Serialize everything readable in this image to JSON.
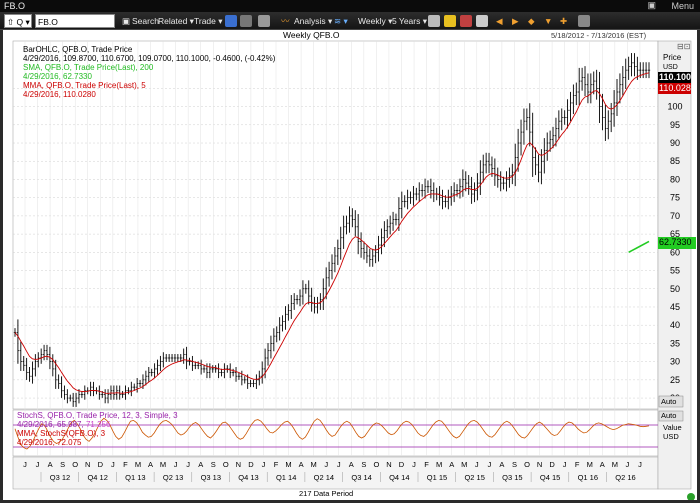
{
  "window": {
    "title": "FB.O",
    "menu_label": "Menu"
  },
  "toolbar": {
    "symbol_type": "Q",
    "symbol_value": "FB.O",
    "search_label": "Search",
    "related_label": "Related",
    "trade_label": "Trade",
    "analysis_label": "Analysis",
    "interval_label": "Weekly",
    "range_label": "5 Years"
  },
  "chart_header": {
    "title": "Weekly QFB.O",
    "date_range": "5/18/2012 - 7/13/2016 (EST)"
  },
  "legend": {
    "bar_line1": "BarOHLC, QFB.O, Trade Price",
    "bar_line2": "4/29/2016, 109.8700, 110.6700, 109.0700, 110.1000, -0.4600, (-0.42%)",
    "sma_line1": "SMA, QFB.O, Trade Price(Last), 200",
    "sma_line2": "4/29/2016, 62.7330",
    "mma_line1": "MMA, QFB.O, Trade Price(Last), 5",
    "mma_line2": "4/29/2016, 110.0280",
    "stoch_line1": "StochS, QFB.O, Trade Price, 12, 3, Simple, 3",
    "stoch_line2_a": "4/29/2016, 65.987,",
    "stoch_line2_b": "71.256",
    "stoch_mma_line1": "MMA, StochS(QFB.O), 3",
    "stoch_mma_line2": "4/29/2016, 72.075"
  },
  "price_axis": {
    "header": "Price",
    "currency": "USD",
    "last_price": "110.100",
    "mma_value": "110.028",
    "sma_value": "62.7330",
    "auto_label": "Auto"
  },
  "stoch_axis": {
    "auto_label": "Auto",
    "header": "Value",
    "currency": "USD"
  },
  "footer": {
    "data_period": "217 Data Period"
  },
  "colors": {
    "price_bars": "#000000",
    "mma": "#cc0000",
    "sma": "#22cc22",
    "stoch_k": "#cc5500",
    "stoch_band": "#9922aa"
  },
  "chart_data": [
    {
      "type": "line",
      "title": "Weekly QFB.O",
      "x_labels": [
        "J",
        "J",
        "A",
        "S",
        "O",
        "N",
        "D",
        "J",
        "F",
        "M",
        "A",
        "M",
        "J",
        "J",
        "A",
        "S",
        "O",
        "N",
        "D",
        "J",
        "F",
        "M",
        "A",
        "M",
        "J",
        "J",
        "A",
        "S",
        "O",
        "N",
        "D",
        "J",
        "F",
        "M",
        "A",
        "M",
        "J",
        "J",
        "A",
        "S",
        "O",
        "N",
        "D",
        "J",
        "F",
        "M",
        "A",
        "M",
        "J",
        "J"
      ],
      "quarter_labels": [
        "Q3 12",
        "Q4 12",
        "Q1 13",
        "Q2 13",
        "Q3 13",
        "Q4 13",
        "Q1 14",
        "Q2 14",
        "Q3 14",
        "Q4 14",
        "Q1 15",
        "Q2 15",
        "Q3 15",
        "Q4 15",
        "Q1 16",
        "Q2 16"
      ],
      "y_ticks": [
        20,
        25,
        30,
        35,
        40,
        45,
        50,
        55,
        60,
        65,
        70,
        75,
        80,
        85,
        90,
        95,
        100,
        105
      ],
      "ylim": [
        17,
        118
      ],
      "series": [
        {
          "name": "BarOHLC, QFB.O, Trade Price",
          "period_start": "5/18/2012",
          "period_end": "4/29/2016",
          "close": [
            38,
            33,
            30,
            29,
            27,
            26,
            28,
            30,
            31,
            32,
            33,
            32,
            30,
            28,
            25,
            24,
            22,
            21,
            20,
            20,
            19,
            20,
            21,
            21,
            22,
            22,
            23,
            22,
            22,
            21,
            21,
            20,
            21,
            22,
            21,
            22,
            21,
            21,
            22,
            22,
            23,
            23,
            24,
            24,
            25,
            26,
            27,
            27,
            28,
            29,
            30,
            31,
            31,
            31,
            31,
            31,
            31,
            31,
            32,
            30,
            30,
            29,
            29,
            29,
            28,
            28,
            27,
            28,
            28,
            28,
            27,
            27,
            28,
            28,
            27,
            27,
            26,
            26,
            25,
            25,
            24,
            24,
            24,
            25,
            26,
            28,
            31,
            33,
            35,
            37,
            38,
            40,
            41,
            43,
            44,
            46,
            47,
            47,
            48,
            50,
            50,
            48,
            46,
            45,
            46,
            47,
            50,
            53,
            55,
            57,
            59,
            61,
            64,
            67,
            68,
            70,
            69,
            67,
            63,
            61,
            60,
            59,
            58,
            59,
            60,
            62,
            64,
            66,
            67,
            68,
            69,
            69,
            72,
            74,
            74,
            75,
            75,
            76,
            76,
            77,
            77,
            78,
            78,
            77,
            76,
            76,
            75,
            74,
            74,
            75,
            76,
            77,
            77,
            78,
            80,
            79,
            78,
            76,
            77,
            79,
            82,
            84,
            85,
            84,
            83,
            81,
            80,
            79,
            79,
            80,
            81,
            82,
            86,
            90,
            93,
            96,
            97,
            93,
            86,
            84,
            82,
            85,
            88,
            90,
            91,
            92,
            94,
            96,
            97,
            97,
            99,
            101,
            103,
            104,
            107,
            108,
            106,
            104,
            106,
            107,
            105,
            100,
            97,
            94,
            96,
            98,
            101,
            104,
            106,
            108,
            110,
            111,
            112,
            111,
            110,
            110,
            110,
            110,
            110
          ]
        },
        {
          "name": "MMA, QFB.O, Trade Price(Last), 5",
          "last": 110.028
        },
        {
          "name": "SMA, QFB.O, Trade Price(Last), 200",
          "last": 62.733,
          "segment": [
            60,
            63
          ]
        }
      ]
    },
    {
      "type": "line",
      "title": "StochS, QFB.O, Trade Price, 12, 3, Simple, 3",
      "ylim": [
        0,
        100
      ],
      "series": [
        {
          "name": "StochS, QFB.O, Trade Price, 12, 3, Simple, 3",
          "values": [
            60,
            40,
            22,
            15,
            12,
            18,
            30,
            45,
            60,
            72,
            68,
            55,
            40,
            30,
            25,
            28,
            35,
            48,
            62,
            75,
            80,
            72,
            60,
            45,
            35,
            30,
            38,
            50,
            65,
            78,
            85,
            80,
            70,
            55,
            42,
            35,
            40,
            52,
            66,
            78,
            80,
            75,
            65,
            52,
            45,
            40,
            42,
            50,
            62,
            72,
            78,
            80,
            76,
            70,
            60,
            50,
            45,
            48,
            55,
            65,
            72,
            75,
            70,
            60,
            50,
            42,
            38,
            45,
            55,
            66,
            74,
            76,
            70,
            60,
            50,
            40,
            35,
            38,
            48,
            60,
            72,
            80,
            82,
            78,
            70,
            60,
            52,
            50,
            55,
            62,
            70,
            76,
            78,
            72,
            62,
            50,
            40,
            35,
            40,
            52,
            66,
            78,
            84,
            80,
            70,
            58,
            48,
            42,
            45,
            55,
            66,
            74,
            78,
            74,
            64,
            52,
            42,
            38,
            42,
            52,
            62,
            70,
            74,
            72,
            66,
            58,
            50,
            46,
            48,
            56,
            66,
            74,
            78,
            76,
            70,
            60,
            50,
            44,
            42,
            48,
            58,
            68,
            76,
            80,
            78,
            70,
            60,
            50,
            42,
            38,
            42,
            52,
            62,
            72,
            78,
            80,
            76,
            68,
            58,
            48,
            42,
            40,
            46,
            56,
            66,
            74,
            78,
            74,
            66,
            56,
            46,
            40,
            38,
            44,
            54,
            64,
            72,
            76,
            72,
            64,
            56,
            48,
            44,
            46,
            54,
            64,
            72,
            76,
            74,
            68,
            60,
            54,
            50,
            52,
            58,
            66,
            72,
            74,
            72,
            68,
            64,
            60,
            58,
            60,
            64,
            68,
            70,
            72,
            71,
            70,
            68,
            66,
            65,
            66,
            67
          ]
        },
        {
          "name": "MMA, StochS(QFB.O), 3",
          "last": 72.075
        }
      ]
    }
  ]
}
